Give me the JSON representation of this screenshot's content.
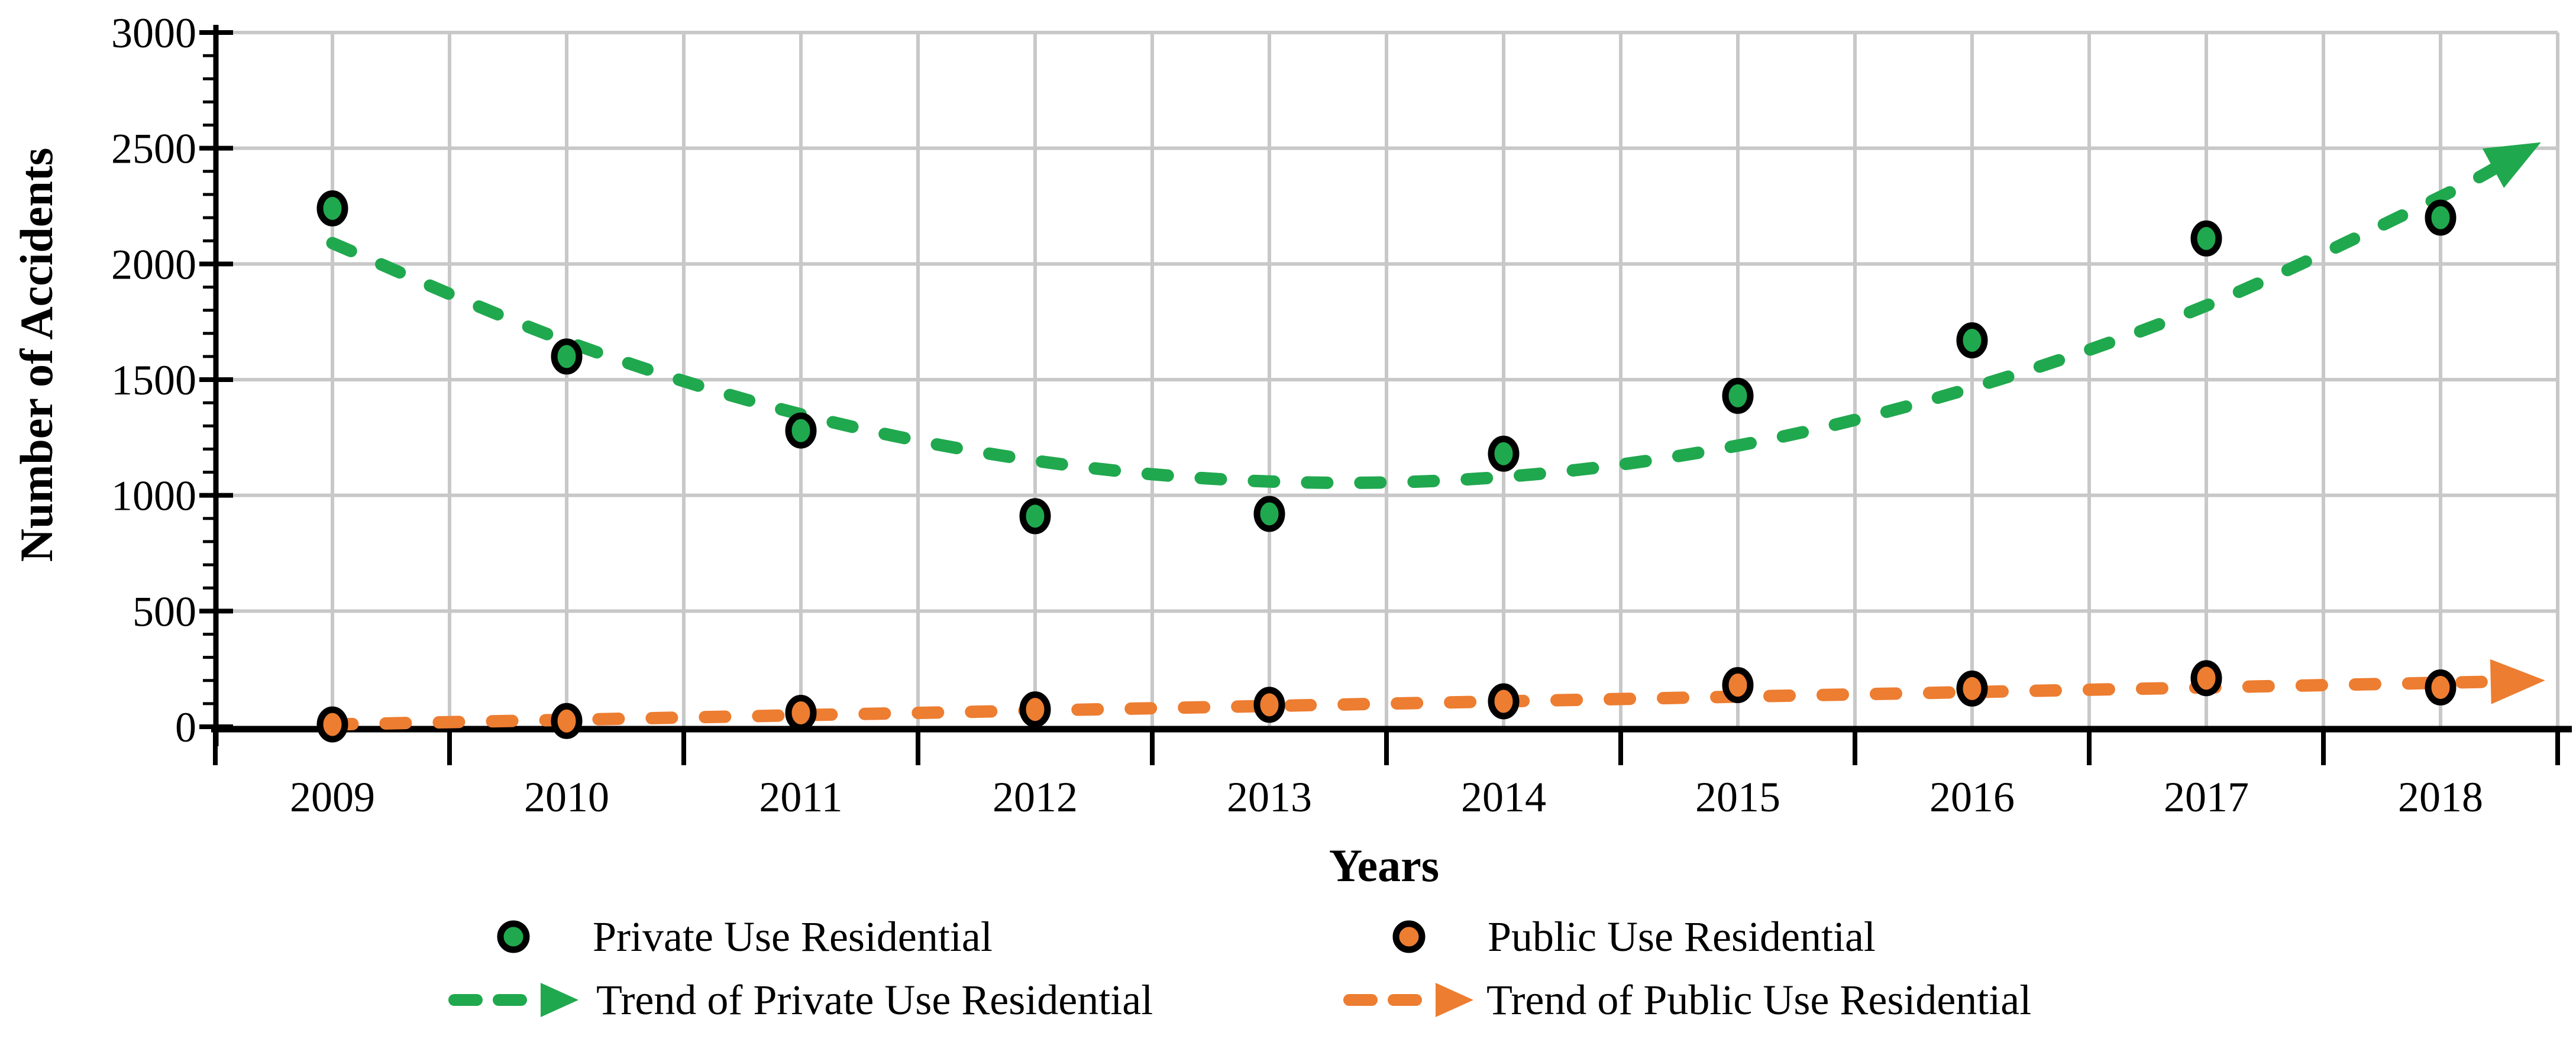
{
  "chart_data": {
    "type": "scatter",
    "title": "",
    "xlabel": "Years",
    "ylabel": "Number of Accidents",
    "grid": true,
    "legend_position": "bottom",
    "x_categories": [
      "2009",
      "2010",
      "2011",
      "2012",
      "2013",
      "2014",
      "2015",
      "2016",
      "2017",
      "2018"
    ],
    "y_axis": {
      "min": 0,
      "max": 3000,
      "major": 500,
      "minor": 100,
      "tick_labels": [
        "0",
        "500",
        "1000",
        "1500",
        "2000",
        "2500",
        "3000"
      ]
    },
    "series": [
      {
        "name": "Private Use Residential",
        "marker": "circle",
        "color": "#20A84E",
        "marker_outline": "#000000",
        "values": [
          2240,
          1600,
          1280,
          910,
          920,
          1180,
          1430,
          1670,
          2110,
          2200
        ]
      },
      {
        "name": "Public Use Residential",
        "marker": "circle",
        "color": "#ED7D31",
        "marker_outline": "#000000",
        "values": [
          10,
          25,
          60,
          75,
          95,
          110,
          180,
          165,
          210,
          170
        ]
      }
    ],
    "trendlines": [
      {
        "name": "Trend of Private Use Residential",
        "color": "#20A84E",
        "style": "dashed-arrow",
        "shape": "polynomial",
        "values": [
          2090,
          1665,
          1350,
          1150,
          1060,
          1080,
          1215,
          1465,
          1820,
          2290
        ],
        "end_x_offset": 9.3,
        "end_value": 2455
      },
      {
        "name": "Trend of Public Use Residential",
        "color": "#ED7D31",
        "style": "dashed-arrow",
        "shape": "linear",
        "values": [
          10,
          30,
          50,
          70,
          90,
          110,
          130,
          150,
          170,
          190
        ],
        "end_x_offset": 9.3,
        "end_value": 197
      }
    ],
    "colors": {
      "gridline": "#C8C8C8",
      "axis": "#000000",
      "text": "#000000",
      "background": "#FFFFFF"
    }
  }
}
